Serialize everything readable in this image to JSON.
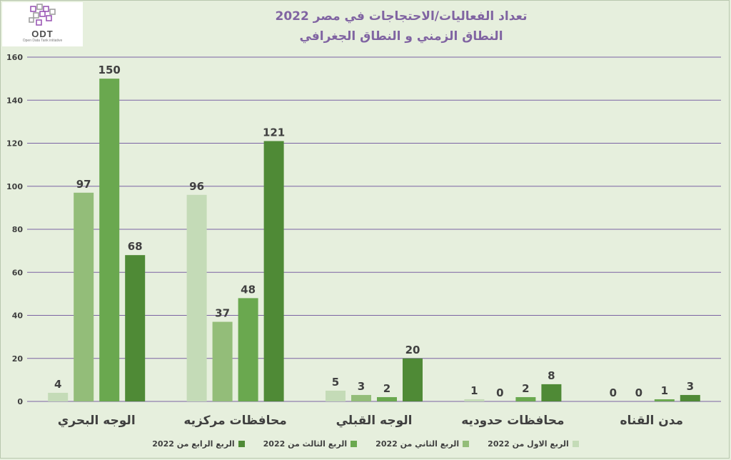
{
  "logo": {
    "name": "ODT",
    "tagline": "Open Data Tank initiative"
  },
  "chart_data": {
    "type": "bar",
    "title": "تعداد الفعاليات/الاحتجاجات في مصر 2022",
    "subtitle": "النطاق الزمني و النطاق الجغرافي",
    "categories": [
      "الوجه البحري",
      "محافظات مركزيه",
      "الوجه القبلي",
      "محافظات حدوديه",
      "مدن القناه"
    ],
    "series": [
      {
        "name": "الربع الاول من 2022",
        "color": "#c4dbb7",
        "values": [
          4,
          96,
          5,
          1,
          0
        ]
      },
      {
        "name": "الربع الثاني من 2022",
        "color": "#93bd79",
        "values": [
          97,
          37,
          3,
          0,
          0
        ]
      },
      {
        "name": "الربع الثالث من 2022",
        "color": "#6aa84f",
        "values": [
          150,
          48,
          2,
          2,
          1
        ]
      },
      {
        "name": "الربع الرابع من 2022",
        "color": "#4f8a36",
        "values": [
          68,
          121,
          20,
          8,
          3
        ]
      }
    ],
    "ylim": [
      0,
      160
    ],
    "yticks": [
      0,
      20,
      40,
      60,
      80,
      100,
      120,
      140,
      160
    ],
    "grid": true,
    "legend_position": "bottom",
    "gridline_color": "#7b63a3",
    "xlabel": "",
    "ylabel": ""
  }
}
